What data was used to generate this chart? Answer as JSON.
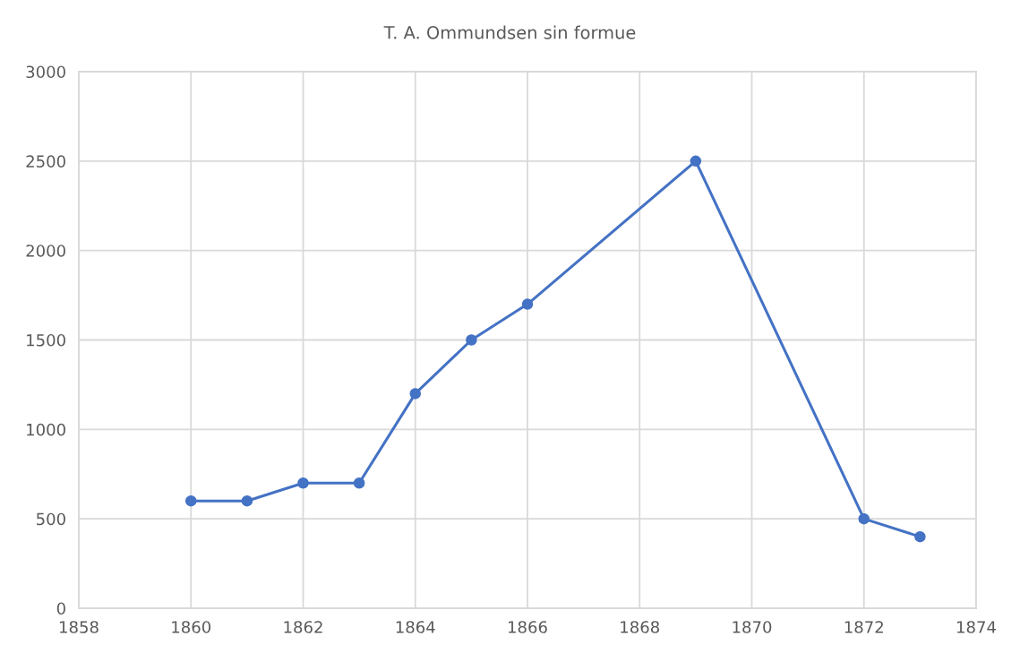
{
  "chart_data": {
    "type": "line",
    "title": "T. A. Ommundsen sin formue",
    "x": [
      1860,
      1861,
      1862,
      1863,
      1864,
      1865,
      1866,
      1869,
      1872,
      1873
    ],
    "series": [
      {
        "color": "#4472c4",
        "values": [
          600,
          600,
          700,
          700,
          1200,
          1500,
          1700,
          2500,
          500,
          400
        ]
      }
    ],
    "xlim": [
      1858,
      1874
    ],
    "xticks": [
      1858,
      1860,
      1862,
      1864,
      1866,
      1868,
      1870,
      1872,
      1874
    ],
    "ylim": [
      0,
      3000
    ],
    "yticks": [
      0,
      500,
      1000,
      1500,
      2000,
      2500,
      3000
    ],
    "grid": true,
    "marker": "circle",
    "line_style": "solid"
  }
}
